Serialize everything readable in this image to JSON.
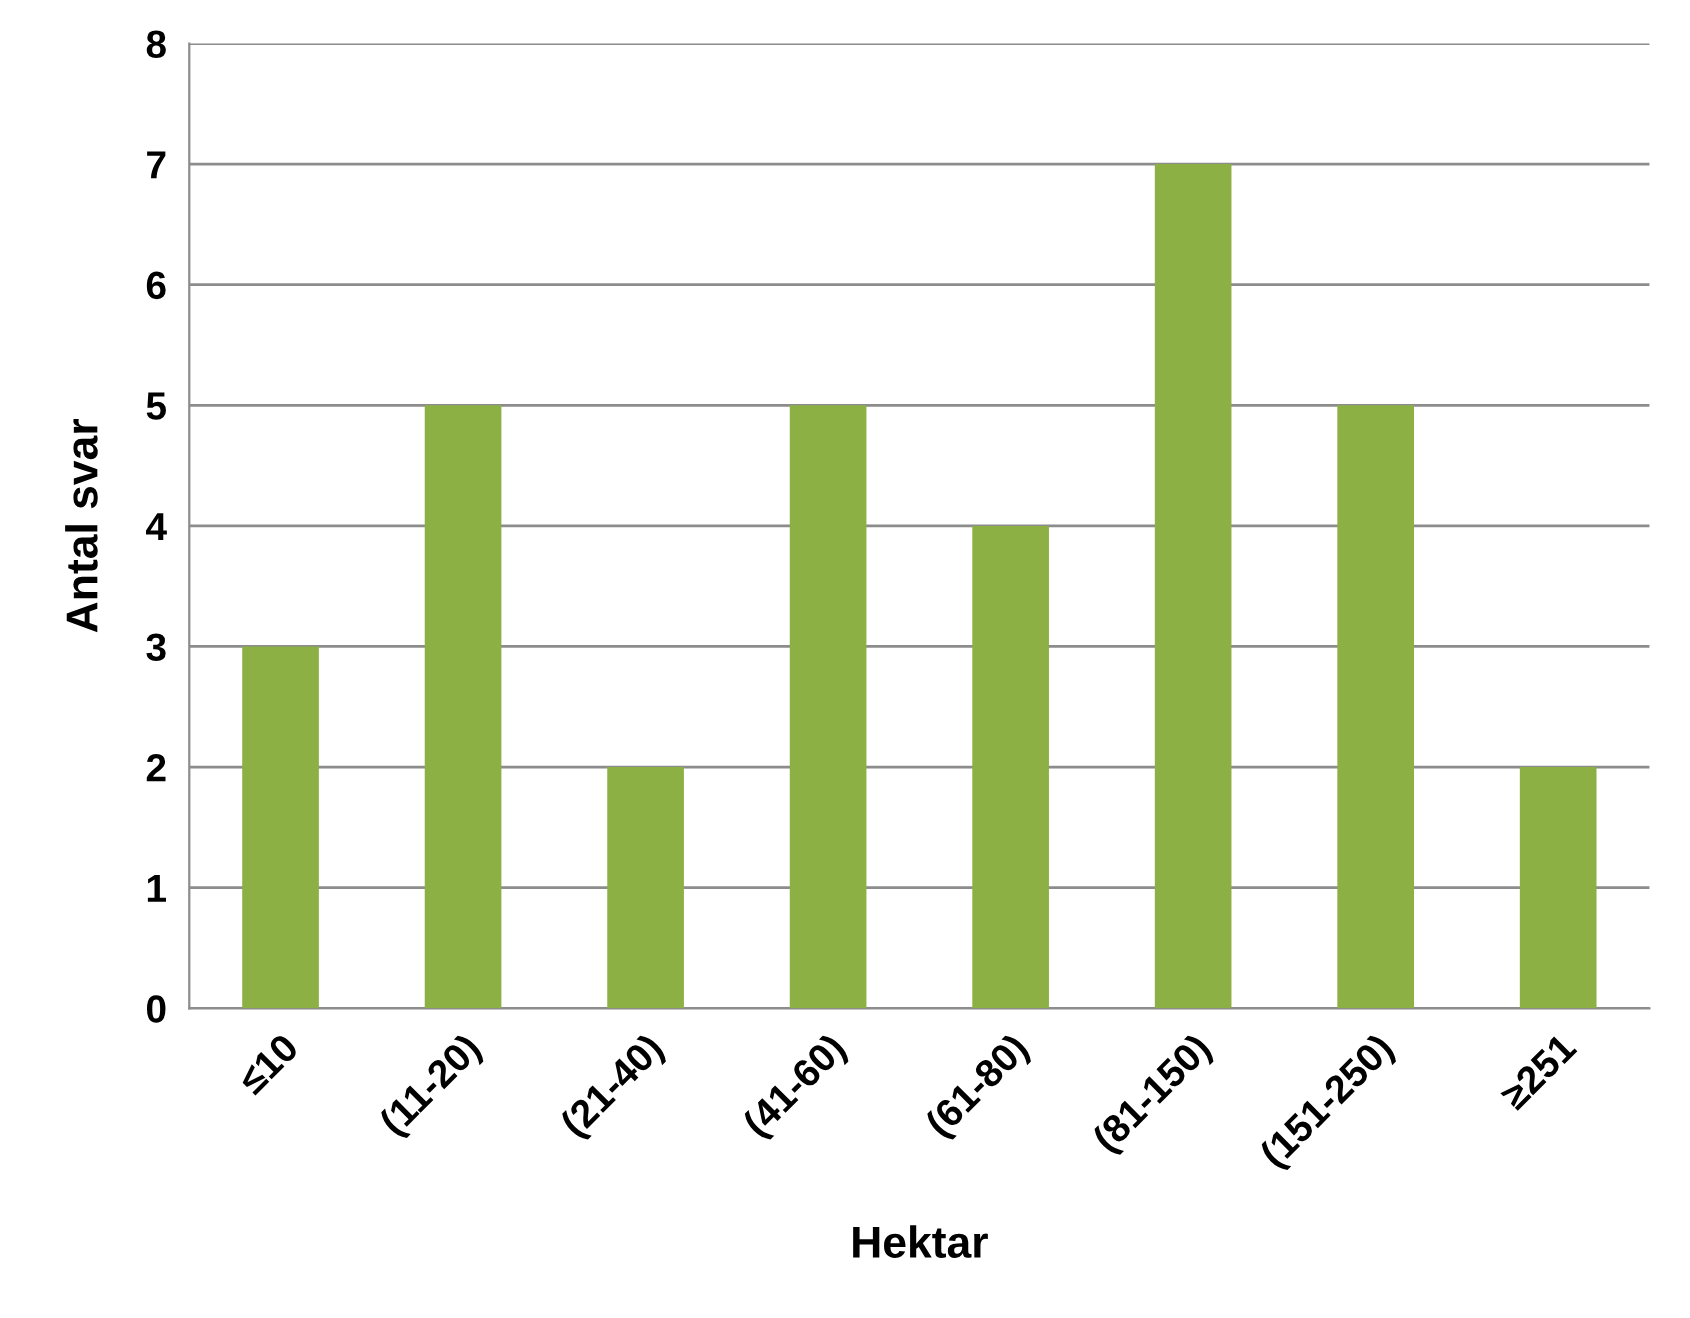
{
  "chart_data": {
    "type": "bar",
    "xlabel": "Hektar",
    "ylabel": "Antal svar",
    "categories": [
      "≤10",
      "(11-20)",
      "(21-40)",
      "(41-60)",
      "(61-80)",
      "(81-150)",
      "(151-250)",
      "≥251"
    ],
    "values": [
      3,
      5,
      2,
      5,
      4,
      7,
      5,
      2
    ],
    "color": "#8cb043",
    "ylim": [
      0,
      8
    ],
    "yticks": [
      0,
      1,
      2,
      3,
      4,
      5,
      6,
      7,
      8
    ],
    "grid": "y",
    "legend": false
  }
}
